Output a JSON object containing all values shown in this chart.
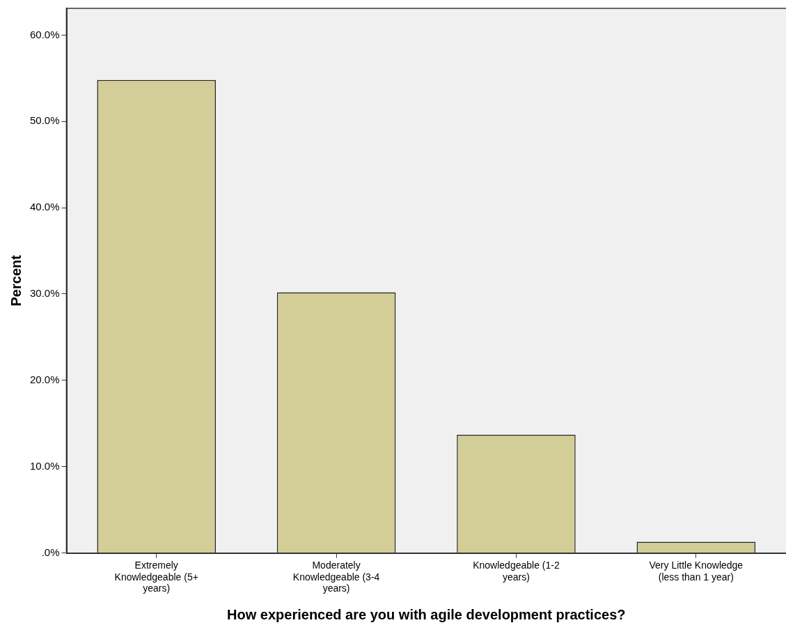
{
  "chart_data": {
    "type": "bar",
    "xlabel": "How experienced are you with agile development practices?",
    "ylabel": "Percent",
    "categories": [
      "Extremely Knowledgeable (5+ years)",
      "Moderately Knowledgeable (3-4 years)",
      "Knowledgeable (1-2 years)",
      "Very Little Knowledge (less than 1 year)"
    ],
    "values": [
      54.8,
      30.2,
      13.7,
      1.3
    ],
    "color": "#d3ce97",
    "ylim": [
      0,
      63.1
    ],
    "yticks": [
      {
        "value": 0,
        "label": ".0%"
      },
      {
        "value": 10,
        "label": "10.0%"
      },
      {
        "value": 20,
        "label": "20.0%"
      },
      {
        "value": 30,
        "label": "30.0%"
      },
      {
        "value": 40,
        "label": "40.0%"
      },
      {
        "value": 50,
        "label": "50.0%"
      },
      {
        "value": 60,
        "label": "60.0%"
      }
    ],
    "grid": false,
    "legend": false
  }
}
